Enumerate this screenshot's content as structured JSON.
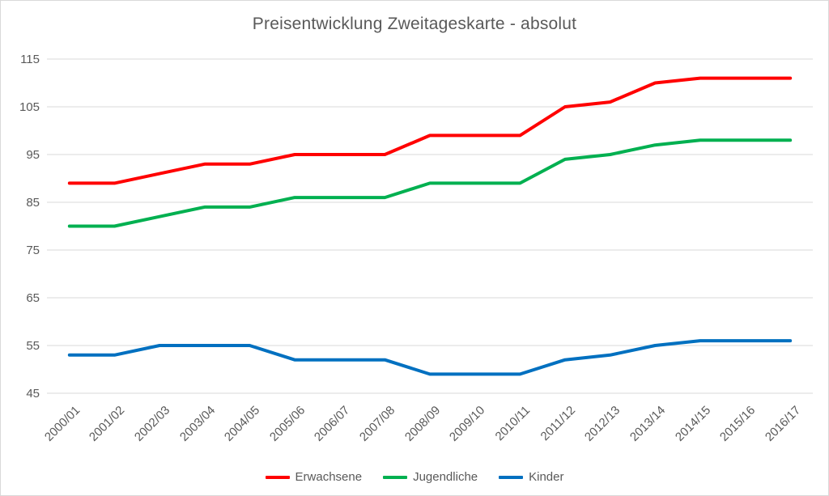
{
  "chart_data": {
    "type": "line",
    "title": "Preisentwicklung Zweitageskarte - absolut",
    "categories": [
      "2000/01",
      "2001/02",
      "2002/03",
      "2003/04",
      "2004/05",
      "2005/06",
      "2006/07",
      "2007/08",
      "2008/09",
      "2009/10",
      "2010/11",
      "2011/12",
      "2012/13",
      "2013/14",
      "2014/15",
      "2015/16",
      "2016/17"
    ],
    "series": [
      {
        "name": "Erwachsene",
        "color": "#FF0000",
        "values": [
          89,
          89,
          91,
          93,
          93,
          95,
          95,
          95,
          99,
          99,
          99,
          105,
          106,
          110,
          111,
          111,
          111
        ]
      },
      {
        "name": "Jugendliche",
        "color": "#00B050",
        "values": [
          80,
          80,
          82,
          84,
          84,
          86,
          86,
          86,
          89,
          89,
          89,
          94,
          95,
          97,
          98,
          98,
          98
        ]
      },
      {
        "name": "Kinder",
        "color": "#0070C0",
        "values": [
          53,
          53,
          55,
          55,
          55,
          52,
          52,
          52,
          49,
          49,
          49,
          52,
          53,
          55,
          56,
          56,
          56
        ]
      }
    ],
    "xlabel": "",
    "ylabel": "",
    "ylim": [
      45,
      115
    ],
    "yticks": [
      45,
      55,
      65,
      75,
      85,
      95,
      105,
      115
    ],
    "grid": true,
    "legend_position": "bottom",
    "colors": {
      "grid": "#D9D9D9",
      "text": "#595959",
      "background": "#FFFFFF",
      "frame_border": "#D9D9D9"
    },
    "line_width": 4
  }
}
